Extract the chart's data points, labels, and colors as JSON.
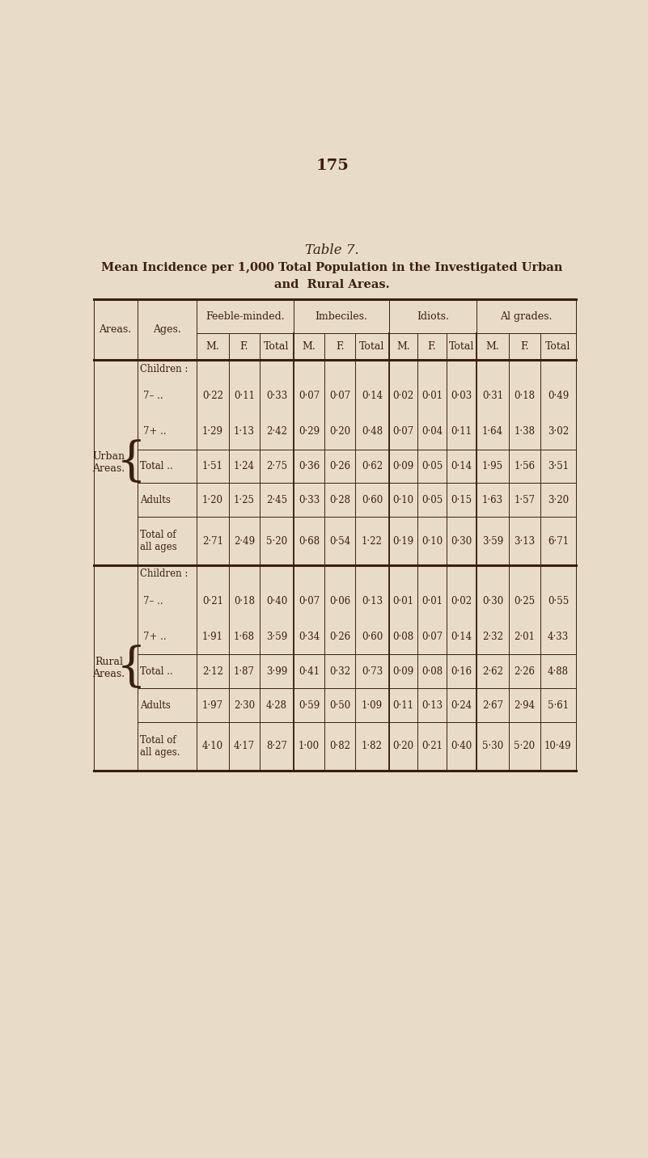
{
  "page_number": "175",
  "table_title": "Table 7.",
  "table_subtitle_line1": "Mean Incidence per 1,000 Total Population in the Investigated Urban",
  "table_subtitle_line2": "and  Rural Areas.",
  "background_color": "#e8dcc8",
  "text_color": "#3a1f0d",
  "col_groups": [
    "Feeble-minded.",
    "Imbeciles.",
    "Idiots.",
    "Al grades."
  ],
  "sub_cols": [
    "M.",
    "F.",
    "Total"
  ],
  "urban_7m": [
    "0·22",
    "0·11",
    "0·33",
    "0·07",
    "0·07",
    "0·14",
    "0·02",
    "0·01",
    "0·03",
    "0·31",
    "0·18",
    "0·49"
  ],
  "urban_7p": [
    "1·29",
    "1·13",
    "2·42",
    "0·29",
    "0·20",
    "0·48",
    "0·07",
    "0·04",
    "0·11",
    "1·64",
    "1·38",
    "3·02"
  ],
  "urban_tot": [
    "1·51",
    "1·24",
    "2·75",
    "0·36",
    "0·26",
    "0·62",
    "0·09",
    "0·05",
    "0·14",
    "1·95",
    "1·56",
    "3·51"
  ],
  "urban_adults": [
    "1·20",
    "1·25",
    "2·45",
    "0·33",
    "0·28",
    "0·60",
    "0·10",
    "0·05",
    "0·15",
    "1·63",
    "1·57",
    "3·20"
  ],
  "urban_tall": [
    "2·71",
    "2·49",
    "5·20",
    "0·68",
    "0·54",
    "1·22",
    "0·19",
    "0·10",
    "0·30",
    "3·59",
    "3·13",
    "6·71"
  ],
  "rural_7m": [
    "0·21",
    "0·18",
    "0·40",
    "0·07",
    "0·06",
    "0·13",
    "0·01",
    "0·01",
    "0·02",
    "0·30",
    "0·25",
    "0·55"
  ],
  "rural_7p": [
    "1·91",
    "1·68",
    "3·59",
    "0·34",
    "0·26",
    "0·60",
    "0·08",
    "0·07",
    "0·14",
    "2·32",
    "2·01",
    "4·33"
  ],
  "rural_tot": [
    "2·12",
    "1·87",
    "3·99",
    "0·41",
    "0·32",
    "0·73",
    "0·09",
    "0·08",
    "0·16",
    "2·62",
    "2·26",
    "4·88"
  ],
  "rural_adults": [
    "1·97",
    "2·30",
    "4·28",
    "0·59",
    "0·50",
    "1·09",
    "0·11",
    "0·13",
    "0·24",
    "2·67",
    "2·94",
    "5·61"
  ],
  "rural_tall": [
    "4·10",
    "4·17",
    "8·27",
    "1·00",
    "0·82",
    "1·82",
    "0·20",
    "0·21",
    "0·40",
    "5·30",
    "5·20",
    "10·49"
  ]
}
